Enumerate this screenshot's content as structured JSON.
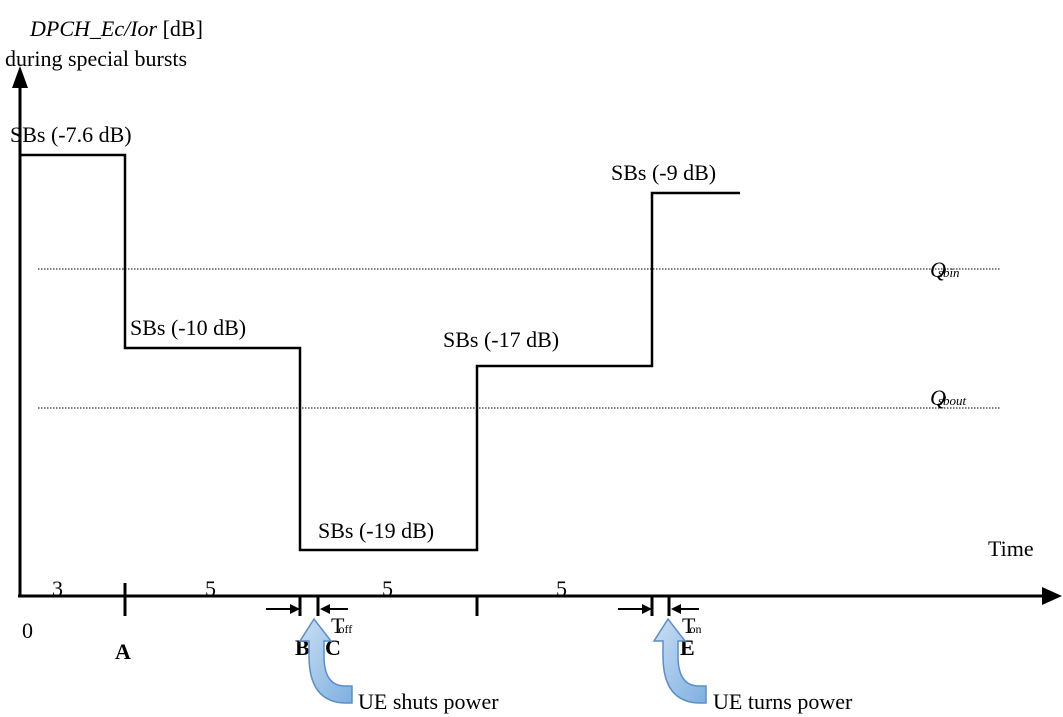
{
  "y_axis": {
    "title_italic": "DPCH_Ec/Ior",
    "title_unit": " [dB]",
    "subtitle": "during special bursts"
  },
  "x_axis": {
    "label": "Time",
    "origin": "0"
  },
  "segments": [
    {
      "label": "SBs (-7.6 dB)",
      "level_db": -7.6
    },
    {
      "label": "SBs (-10 dB)",
      "level_db": -10
    },
    {
      "label": "SBs (-19 dB)",
      "level_db": -19
    },
    {
      "label": "SBs (-17 dB)",
      "level_db": -17
    },
    {
      "label": "SBs (-9 dB)",
      "level_db": -9
    }
  ],
  "durations": [
    "3",
    "5",
    "5",
    "5"
  ],
  "thresholds": {
    "qsbin": {
      "main": "Q",
      "sub": "sbin"
    },
    "qsbout": {
      "main": "Q",
      "sub": "sbout"
    }
  },
  "time_points": {
    "A": "A",
    "B": "B",
    "C": "C",
    "E": "E"
  },
  "intervals": {
    "toff": {
      "main": "T",
      "sub": "off"
    },
    "ton": {
      "main": "T",
      "sub": "on"
    }
  },
  "callouts": {
    "shuts": "UE shuts power",
    "turns": "UE turns power"
  },
  "colors": {
    "line": "#000000",
    "callout_arrow_fill": "#9cc3e6",
    "callout_arrow_stroke": "#5b8fc7"
  }
}
